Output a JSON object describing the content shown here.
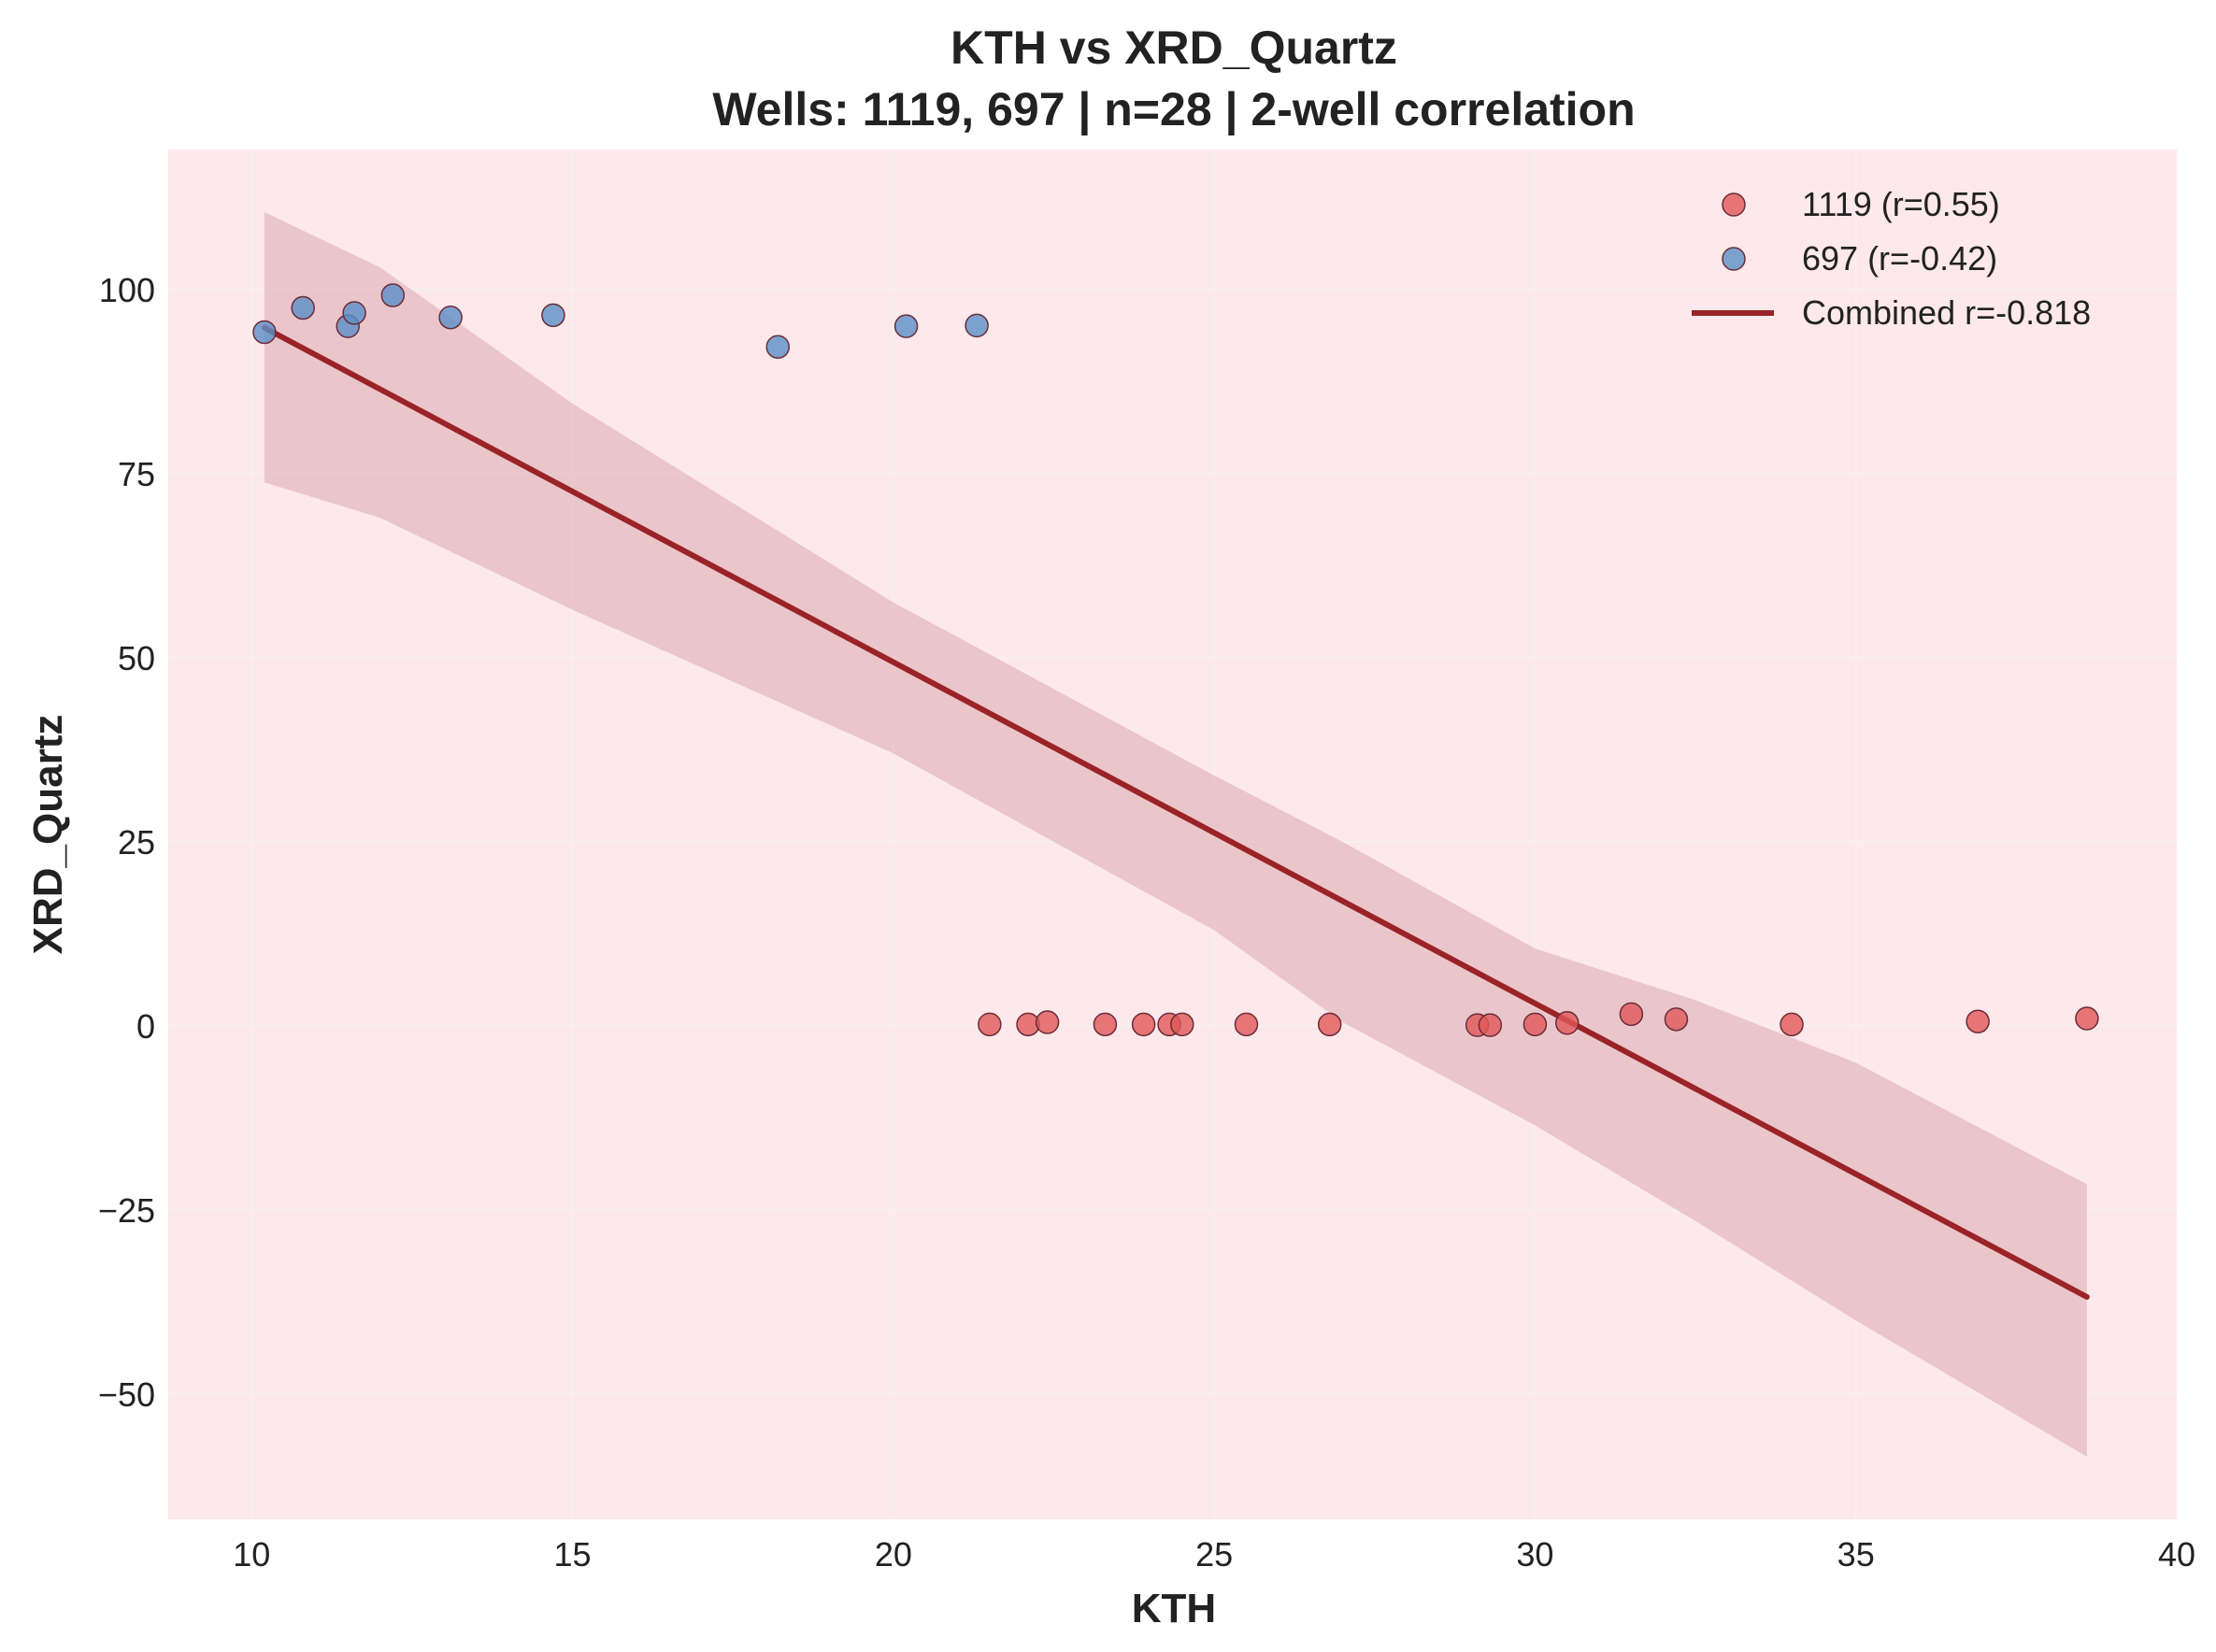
{
  "chart_data": {
    "type": "scatter",
    "title": "KTH vs XRD_Quartz",
    "subtitle": "Wells: 1119, 697 | n=28 | 2-well correlation",
    "xlabel": "KTH",
    "ylabel": "XRD_Quartz",
    "xlim": [
      8.7,
      40.0
    ],
    "ylim": [
      -67,
      119
    ],
    "x_ticks": [
      10,
      15,
      20,
      25,
      30,
      35,
      40
    ],
    "y_ticks": [
      100,
      75,
      50,
      25,
      0,
      -25,
      -50
    ],
    "x_tick_labels": [
      "10",
      "15",
      "20",
      "25",
      "30",
      "35",
      "40"
    ],
    "y_tick_labels": [
      "100",
      "75",
      "50",
      "25",
      "0",
      "−25",
      "−50"
    ],
    "grid": true,
    "legend_position": "top-right",
    "colors": {
      "background": "#fde8eb",
      "grid": "#f7f0f1",
      "series_1119": "#e15759",
      "series_697": "#5b8fc7",
      "fit_line": "#9a2326",
      "band": "#e0b3ba"
    },
    "series": [
      {
        "name": "1119",
        "legend_label": "1119 (r=0.55)",
        "color": "#e15759",
        "points": [
          {
            "x": 21.5,
            "y": 0.2
          },
          {
            "x": 22.1,
            "y": 0.2
          },
          {
            "x": 22.4,
            "y": 0.5
          },
          {
            "x": 23.3,
            "y": 0.2
          },
          {
            "x": 23.9,
            "y": 0.2
          },
          {
            "x": 24.3,
            "y": 0.2
          },
          {
            "x": 24.5,
            "y": 0.2
          },
          {
            "x": 25.5,
            "y": 0.2
          },
          {
            "x": 26.8,
            "y": 0.2
          },
          {
            "x": 29.1,
            "y": 0.1
          },
          {
            "x": 29.3,
            "y": 0.1
          },
          {
            "x": 30.0,
            "y": 0.2
          },
          {
            "x": 30.5,
            "y": 0.4
          },
          {
            "x": 31.5,
            "y": 1.6
          },
          {
            "x": 32.2,
            "y": 0.9
          },
          {
            "x": 34.0,
            "y": 0.2
          },
          {
            "x": 36.9,
            "y": 0.6
          },
          {
            "x": 38.6,
            "y": 1.0
          }
        ]
      },
      {
        "name": "697",
        "legend_label": "697 (r=-0.42)",
        "color": "#5b8fc7",
        "points": [
          {
            "x": 10.2,
            "y": 94.2
          },
          {
            "x": 10.8,
            "y": 97.5
          },
          {
            "x": 11.5,
            "y": 95.0
          },
          {
            "x": 11.6,
            "y": 96.8
          },
          {
            "x": 12.2,
            "y": 99.2
          },
          {
            "x": 13.1,
            "y": 96.2
          },
          {
            "x": 14.7,
            "y": 96.5
          },
          {
            "x": 18.2,
            "y": 92.2
          },
          {
            "x": 20.2,
            "y": 95.0
          },
          {
            "x": 21.3,
            "y": 95.1
          }
        ]
      }
    ],
    "fit": {
      "legend_label": "Combined r=-0.818",
      "x": [
        10.2,
        38.6
      ],
      "y": [
        94.8,
        -36.8
      ],
      "band_upper": [
        [
          10.2,
          110.5
        ],
        [
          12.0,
          103.0
        ],
        [
          15.0,
          84.5
        ],
        [
          20.0,
          57.5
        ],
        [
          25.0,
          34.0
        ],
        [
          27.0,
          25.0
        ],
        [
          30.0,
          10.5
        ],
        [
          32.5,
          3.5
        ],
        [
          35.0,
          -5.0
        ],
        [
          38.6,
          -21.5
        ]
      ],
      "band_lower": [
        [
          10.2,
          73.8
        ],
        [
          12.0,
          69.0
        ],
        [
          15.0,
          56.5
        ],
        [
          20.0,
          37.0
        ],
        [
          25.0,
          13.0
        ],
        [
          27.0,
          0.5
        ],
        [
          30.0,
          -13.5
        ],
        [
          32.5,
          -26.5
        ],
        [
          35.0,
          -40.0
        ],
        [
          38.6,
          -58.5
        ]
      ]
    }
  }
}
